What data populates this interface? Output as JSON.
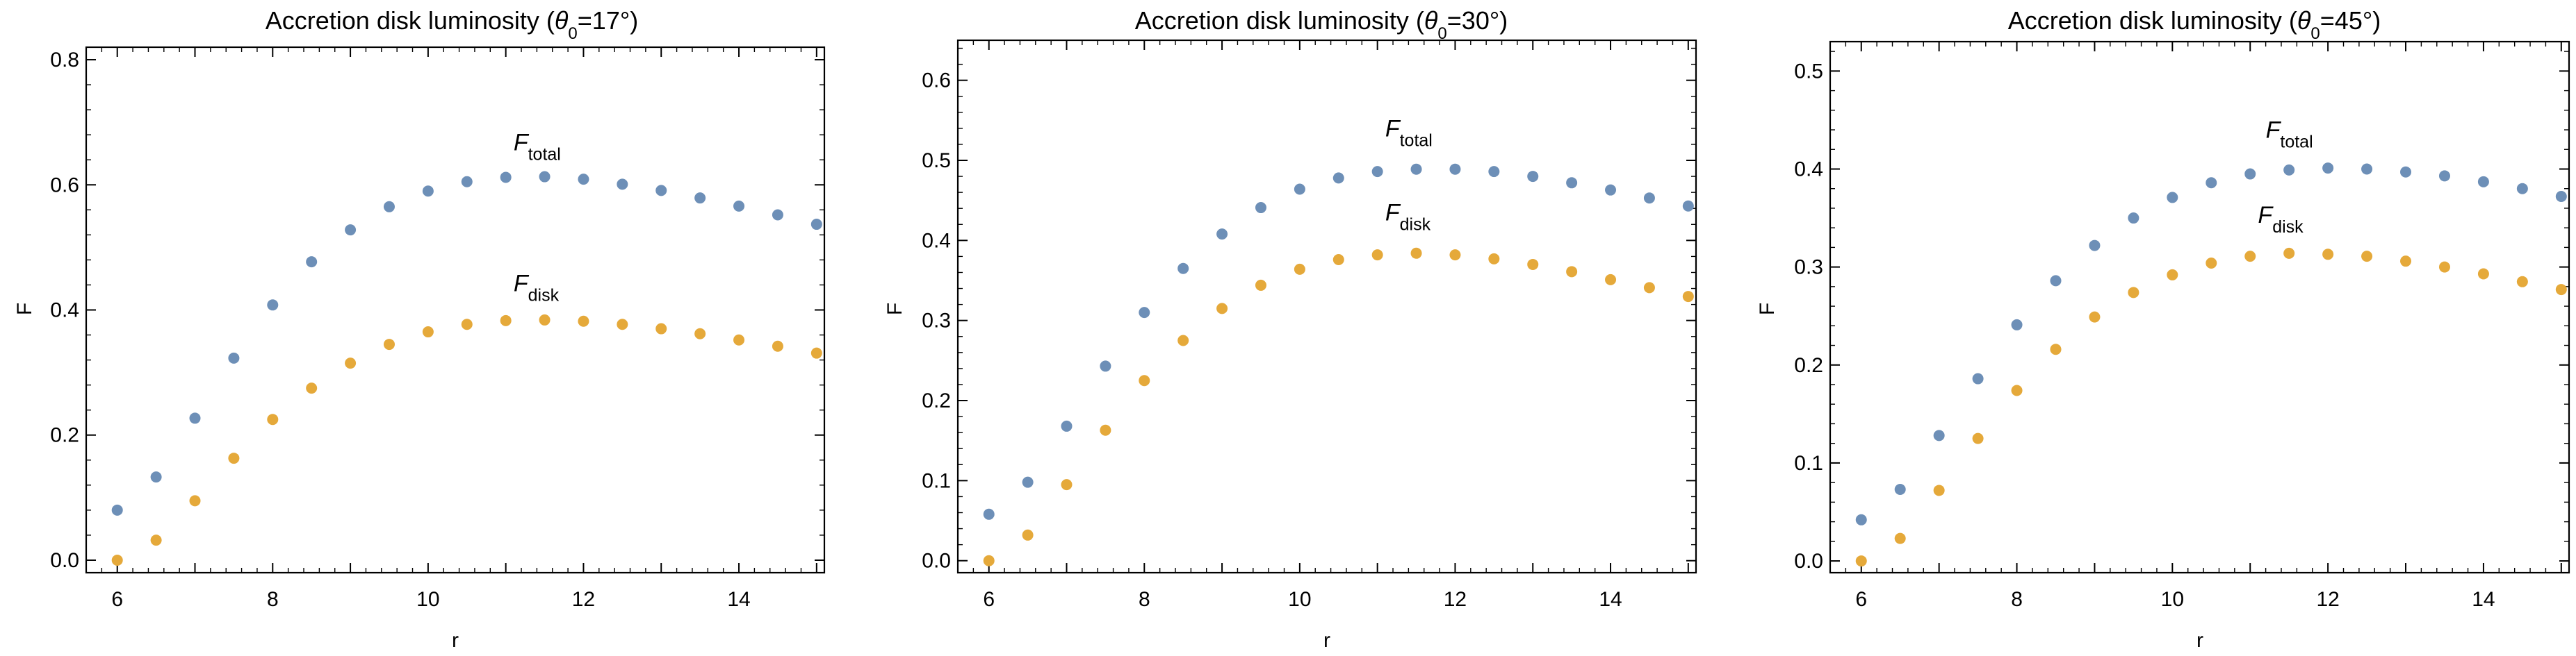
{
  "chart_data": [
    {
      "type": "scatter",
      "title": {
        "prefix": "Accretion disk luminosity  (",
        "theta": "θ",
        "sub": "0",
        "value": "=17°)"
      },
      "xlabel": "r",
      "ylabel": "F",
      "xlim": [
        5.6,
        15.1
      ],
      "ylim": [
        -0.02,
        0.82
      ],
      "xticks": [
        6,
        8,
        10,
        12,
        14
      ],
      "yticks": [
        0.0,
        0.2,
        0.4,
        0.6,
        0.8
      ],
      "ytick_labels": [
        "0.0",
        "0.2",
        "0.4",
        "0.6",
        "0.8"
      ],
      "x": [
        6,
        6.5,
        7,
        7.5,
        8,
        8.5,
        9,
        9.5,
        10,
        10.5,
        11,
        11.5,
        12,
        12.5,
        13,
        13.5,
        14,
        14.5,
        15
      ],
      "series": [
        {
          "key": "total",
          "color": "#6d8fb7",
          "values": [
            0.08,
            0.133,
            0.227,
            0.323,
            0.408,
            0.477,
            0.528,
            0.565,
            0.59,
            0.605,
            0.612,
            0.613,
            0.609,
            0.601,
            0.591,
            0.579,
            0.566,
            0.552,
            0.537
          ]
        },
        {
          "key": "disk",
          "color": "#e5a93a",
          "values": [
            0.0,
            0.032,
            0.095,
            0.163,
            0.225,
            0.275,
            0.315,
            0.345,
            0.365,
            0.377,
            0.383,
            0.384,
            0.382,
            0.377,
            0.37,
            0.362,
            0.352,
            0.342,
            0.331
          ]
        }
      ],
      "annotations": [
        {
          "series": "total",
          "main": "F",
          "sub": "total",
          "x": 11.1,
          "y": 0.655
        },
        {
          "series": "disk",
          "main": "F",
          "sub": "disk",
          "x": 11.1,
          "y": 0.43
        }
      ]
    },
    {
      "type": "scatter",
      "title": {
        "prefix": "Accretion disk luminosity  (",
        "theta": "θ",
        "sub": "0",
        "value": "=30°)"
      },
      "xlabel": "r",
      "ylabel": "F",
      "xlim": [
        5.6,
        15.1
      ],
      "ylim": [
        -0.015,
        0.65
      ],
      "xticks": [
        6,
        8,
        10,
        12,
        14
      ],
      "yticks": [
        0.0,
        0.1,
        0.2,
        0.3,
        0.4,
        0.5,
        0.6
      ],
      "ytick_labels": [
        "0.0",
        "0.1",
        "0.2",
        "0.3",
        "0.4",
        "0.5",
        "0.6"
      ],
      "x": [
        6,
        6.5,
        7,
        7.5,
        8,
        8.5,
        9,
        9.5,
        10,
        10.5,
        11,
        11.5,
        12,
        12.5,
        13,
        13.5,
        14,
        14.5,
        15
      ],
      "series": [
        {
          "key": "total",
          "color": "#6d8fb7",
          "values": [
            0.058,
            0.098,
            0.168,
            0.243,
            0.31,
            0.365,
            0.408,
            0.441,
            0.464,
            0.478,
            0.486,
            0.489,
            0.489,
            0.486,
            0.48,
            0.472,
            0.463,
            0.453,
            0.443
          ]
        },
        {
          "key": "disk",
          "color": "#e5a93a",
          "values": [
            0.0,
            0.032,
            0.095,
            0.163,
            0.225,
            0.275,
            0.315,
            0.344,
            0.364,
            0.376,
            0.382,
            0.384,
            0.382,
            0.377,
            0.37,
            0.361,
            0.351,
            0.341,
            0.33
          ]
        }
      ],
      "annotations": [
        {
          "series": "total",
          "main": "F",
          "sub": "total",
          "x": 11.1,
          "y": 0.53
        },
        {
          "series": "disk",
          "main": "F",
          "sub": "disk",
          "x": 11.1,
          "y": 0.425
        }
      ]
    },
    {
      "type": "scatter",
      "title": {
        "prefix": "Accretion disk luminosity  (",
        "theta": "θ",
        "sub": "0",
        "value": "=45°)"
      },
      "xlabel": "r",
      "ylabel": "F",
      "xlim": [
        5.6,
        15.1
      ],
      "ylim": [
        -0.012,
        0.53
      ],
      "xticks": [
        6,
        8,
        10,
        12,
        14
      ],
      "yticks": [
        0.0,
        0.1,
        0.2,
        0.3,
        0.4,
        0.5
      ],
      "ytick_labels": [
        "0.0",
        "0.1",
        "0.2",
        "0.3",
        "0.4",
        "0.5"
      ],
      "x": [
        6,
        6.5,
        7,
        7.5,
        8,
        8.5,
        9,
        9.5,
        10,
        10.5,
        11,
        11.5,
        12,
        12.5,
        13,
        13.5,
        14,
        14.5,
        15
      ],
      "series": [
        {
          "key": "total",
          "color": "#6d8fb7",
          "values": [
            0.042,
            0.073,
            0.128,
            0.186,
            0.241,
            0.286,
            0.322,
            0.35,
            0.371,
            0.386,
            0.395,
            0.399,
            0.401,
            0.4,
            0.397,
            0.393,
            0.387,
            0.38,
            0.372
          ]
        },
        {
          "key": "disk",
          "color": "#e5a93a",
          "values": [
            0.0,
            0.023,
            0.072,
            0.125,
            0.174,
            0.216,
            0.249,
            0.274,
            0.292,
            0.304,
            0.311,
            0.314,
            0.313,
            0.311,
            0.306,
            0.3,
            0.293,
            0.285,
            0.277
          ]
        }
      ],
      "annotations": [
        {
          "series": "total",
          "main": "F",
          "sub": "total",
          "x": 11.2,
          "y": 0.432
        },
        {
          "series": "disk",
          "main": "F",
          "sub": "disk",
          "x": 11.1,
          "y": 0.345
        }
      ]
    }
  ]
}
